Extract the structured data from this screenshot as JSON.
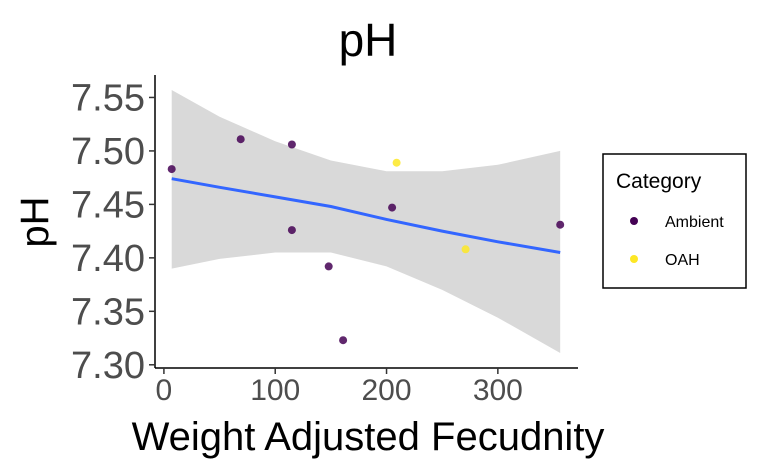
{
  "chart_data": {
    "type": "scatter",
    "title": "pH",
    "xlabel": "Weight Adjusted Fecudnity",
    "ylabel": "pH",
    "xlim": [
      -8,
      372
    ],
    "ylim": [
      7.297,
      7.571
    ],
    "x_ticks": [
      0,
      100,
      200,
      300
    ],
    "y_ticks": [
      7.3,
      7.35,
      7.4,
      7.45,
      7.5,
      7.55
    ],
    "x_tick_labels": [
      "0",
      "100",
      "200",
      "300"
    ],
    "y_tick_labels": [
      "7.30",
      "7.35",
      "7.40",
      "7.45",
      "7.50",
      "7.55"
    ],
    "grid": false,
    "legend": {
      "title": "Category",
      "position": "right",
      "entries": [
        {
          "name": "Ambient",
          "color": "#440154"
        },
        {
          "name": "OAH",
          "color": "#fde725"
        }
      ]
    },
    "series": [
      {
        "name": "Ambient",
        "color": "#440154",
        "points": [
          {
            "x": 7,
            "y": 7.483
          },
          {
            "x": 69,
            "y": 7.511
          },
          {
            "x": 115,
            "y": 7.506
          },
          {
            "x": 115,
            "y": 7.426
          },
          {
            "x": 148,
            "y": 7.392
          },
          {
            "x": 161,
            "y": 7.323
          },
          {
            "x": 205,
            "y": 7.447
          },
          {
            "x": 356,
            "y": 7.431
          }
        ]
      },
      {
        "name": "OAH",
        "color": "#fde725",
        "points": [
          {
            "x": 209,
            "y": 7.489
          },
          {
            "x": 271,
            "y": 7.408
          }
        ]
      }
    ],
    "trend_line": {
      "color": "#3366ff",
      "band_color": "#d9d9d9",
      "x": [
        7,
        50,
        100,
        150,
        200,
        250,
        300,
        356
      ],
      "y": [
        7.474,
        7.466,
        7.457,
        7.448,
        7.436,
        7.425,
        7.415,
        7.405
      ],
      "lower": [
        7.39,
        7.399,
        7.405,
        7.405,
        7.392,
        7.37,
        7.344,
        7.311
      ],
      "upper": [
        7.557,
        7.532,
        7.509,
        7.491,
        7.481,
        7.481,
        7.487,
        7.5
      ]
    }
  }
}
